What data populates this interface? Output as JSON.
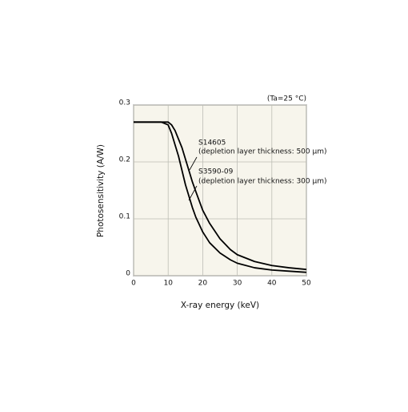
{
  "chart_data": {
    "type": "line",
    "annotation": "(Ta=25 °C)",
    "x_label": "X-ray energy (keV)",
    "y_label": "Photosensitivity (A/W)",
    "x": [
      0,
      5,
      8,
      10,
      11,
      12,
      13,
      14,
      15,
      16,
      17,
      18,
      20,
      22,
      25,
      28,
      30,
      35,
      40,
      45,
      50
    ],
    "series": [
      {
        "name": "S14605",
        "note": "(depletion layer thickness: 500 µm)",
        "color": "#000000",
        "values": [
          0.27,
          0.27,
          0.27,
          0.27,
          0.265,
          0.255,
          0.24,
          0.225,
          0.205,
          0.185,
          0.165,
          0.148,
          0.115,
          0.092,
          0.065,
          0.046,
          0.037,
          0.025,
          0.018,
          0.014,
          0.011
        ]
      },
      {
        "name": "S3590-09",
        "note": "(depletion layer thickness: 300 µm)",
        "color": "#000000",
        "values": [
          0.27,
          0.27,
          0.27,
          0.265,
          0.25,
          0.23,
          0.21,
          0.185,
          0.16,
          0.14,
          0.12,
          0.103,
          0.077,
          0.058,
          0.04,
          0.028,
          0.022,
          0.014,
          0.01,
          0.008,
          0.006
        ]
      }
    ],
    "xlim": [
      0,
      50
    ],
    "xticks": [
      0,
      10,
      20,
      30,
      40,
      50
    ],
    "ylim": [
      0,
      0.3
    ],
    "yticks": [
      0,
      0.1,
      0.2,
      0.3
    ],
    "grid": true
  }
}
